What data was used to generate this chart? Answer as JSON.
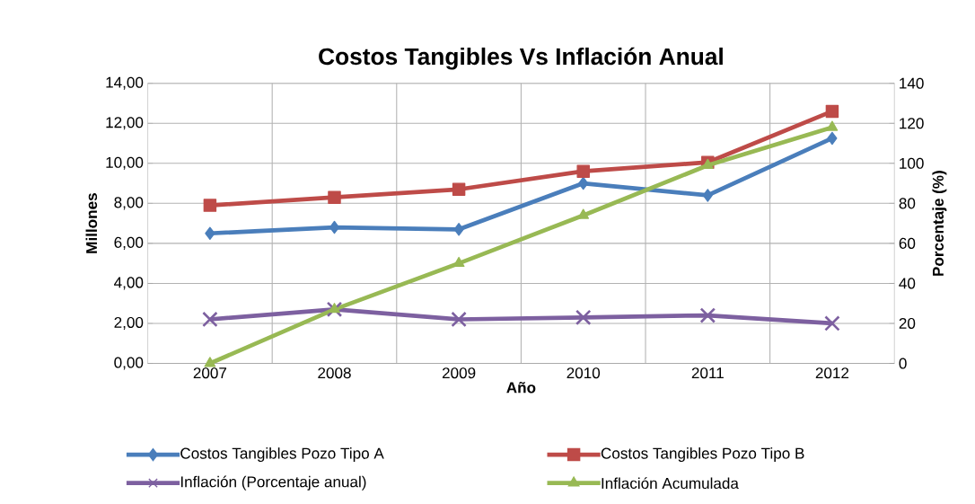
{
  "chart_data": {
    "type": "line",
    "title": "Costos Tangibles Vs Inflación Anual",
    "xlabel": "Año",
    "ylabel": "Millones",
    "y2label": "Porcentaje (%)",
    "categories": [
      "2007",
      "2008",
      "2009",
      "2010",
      "2011",
      "2012"
    ],
    "series": [
      {
        "name": "Costos Tangibles Pozo Tipo A",
        "color": "#4a7ebb",
        "marker": "diamond",
        "values": [
          6.5,
          6.8,
          6.7,
          9.0,
          8.4,
          11.25
        ]
      },
      {
        "name": "Costos Tangibles Pozo Tipo B",
        "color": "#be4b48",
        "marker": "square",
        "values": [
          7.9,
          8.3,
          8.7,
          9.6,
          10.05,
          12.6
        ]
      },
      {
        "name": "Inflación (Porcentaje anual)",
        "color": "#7d60a0",
        "marker": "cross",
        "axis": "y2",
        "values": [
          22,
          27,
          22,
          23,
          24,
          20
        ]
      },
      {
        "name": "Inflación Acumulada",
        "color": "#98b954",
        "marker": "triangle",
        "axis": "y2",
        "values": [
          0,
          27,
          50,
          74,
          99,
          118
        ]
      }
    ],
    "ylim": [
      0,
      14
    ],
    "yticks": [
      {
        "value": 0,
        "label": "0,00"
      },
      {
        "value": 2,
        "label": "2,00"
      },
      {
        "value": 4,
        "label": "4,00"
      },
      {
        "value": 6,
        "label": "6,00"
      },
      {
        "value": 8,
        "label": "8,00"
      },
      {
        "value": 10,
        "label": "10,00"
      },
      {
        "value": 12,
        "label": "12,00"
      },
      {
        "value": 14,
        "label": "14,00"
      }
    ],
    "y2lim": [
      0,
      140
    ],
    "y2ticks": [
      0,
      20,
      40,
      60,
      80,
      100,
      120,
      140
    ],
    "grid": true,
    "legend": "bottom",
    "line_style": "solid"
  }
}
